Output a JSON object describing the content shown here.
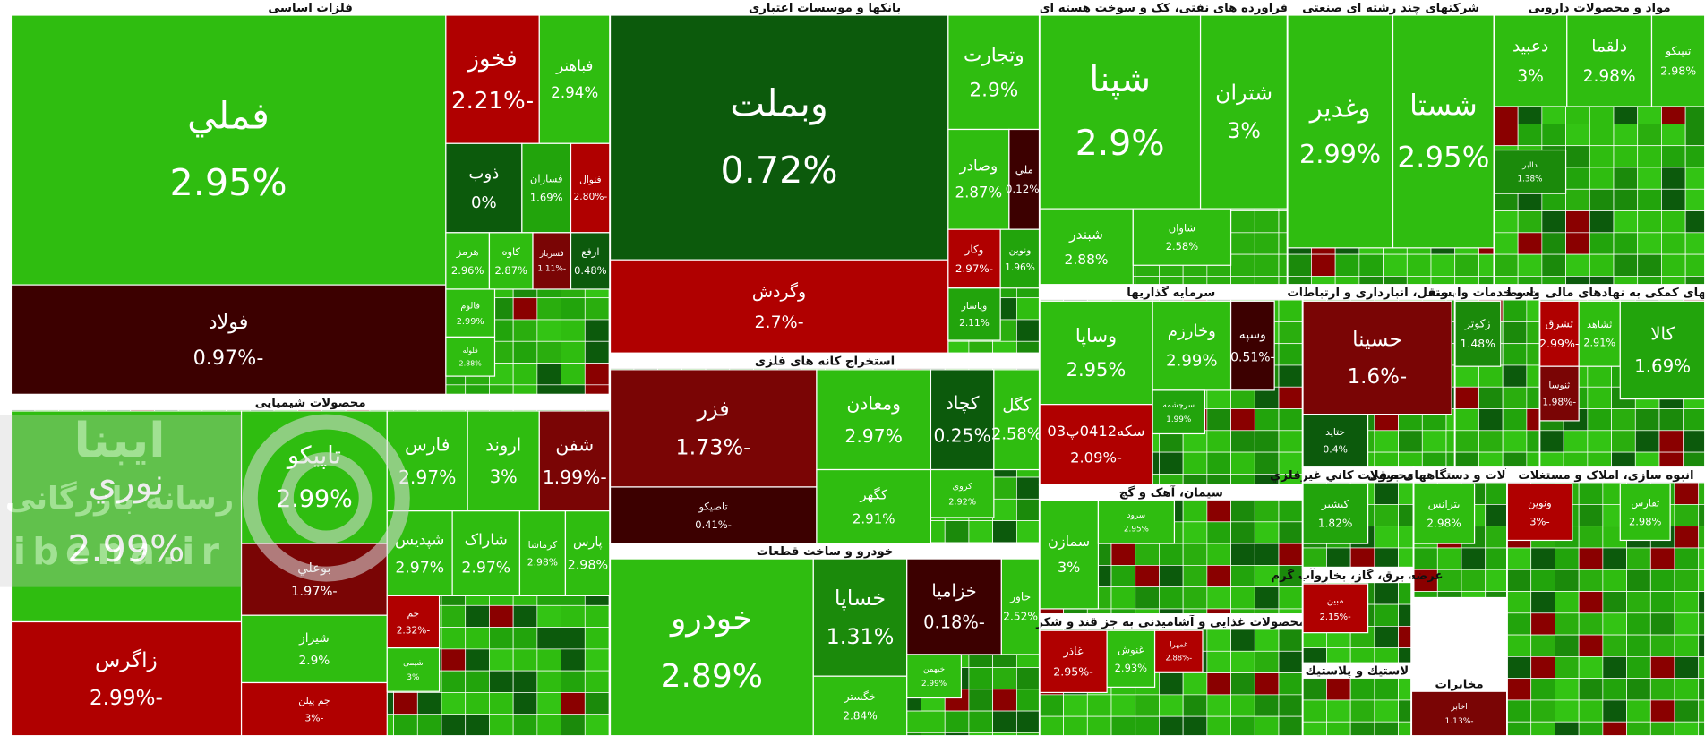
{
  "watermark": {
    "brand": "ایبنا",
    "tagline": "رسانه بازرگانی",
    "url": "ibena.ir"
  },
  "sectors": [
    {
      "title": "فلزات اساسی",
      "tiles": [
        {
          "label": "فملي",
          "change": "2.95%"
        },
        {
          "label": "فولاد",
          "change": "-0.97%"
        },
        {
          "label": "فخوز",
          "change": "-2.21%"
        },
        {
          "label": "فباهنر",
          "change": "2.94%"
        },
        {
          "label": "ذوب",
          "change": "0%"
        },
        {
          "label": "فسازان",
          "change": "1.69%"
        },
        {
          "label": "فنوال",
          "change": "-2.80%"
        },
        {
          "label": "هرمز",
          "change": "2.96%"
        },
        {
          "label": "کاوه",
          "change": "2.87%"
        },
        {
          "label": "فسرباز",
          "change": "-1.11%"
        },
        {
          "label": "ارفع",
          "change": "0.48%"
        },
        {
          "label": "فالوم",
          "change": "2.99%"
        },
        {
          "label": "فلوله",
          "change": "2.88%"
        }
      ]
    },
    {
      "title": "محصولات شیمیایی",
      "tiles": [
        {
          "label": "نوري",
          "change": "2.99%"
        },
        {
          "label": "تاپیکو",
          "change": "2.99%"
        },
        {
          "label": "بوعلي",
          "change": "-1.97%"
        },
        {
          "label": "زاگرس",
          "change": "-2.99%"
        },
        {
          "label": "شیراز",
          "change": "2.9%"
        },
        {
          "label": "جم پیلن",
          "change": "-3%"
        },
        {
          "label": "فارس",
          "change": "2.97%"
        },
        {
          "label": "اروند",
          "change": "3%"
        },
        {
          "label": "شفن",
          "change": "-1.99%"
        },
        {
          "label": "شپدیس",
          "change": "2.97%"
        },
        {
          "label": "شاراک",
          "change": "2.97%"
        },
        {
          "label": "کرماشا",
          "change": "2.98%"
        },
        {
          "label": "پارس",
          "change": "2.98%"
        },
        {
          "label": "جم",
          "change": "-2.32%"
        },
        {
          "label": "شیمی",
          "change": "3%"
        }
      ]
    },
    {
      "title": "بانکها و موسسات اعتباری",
      "tiles": [
        {
          "label": "وبملت",
          "change": "0.72%"
        },
        {
          "label": "وگردش",
          "change": "-2.7%"
        },
        {
          "label": "وتجارت",
          "change": "2.9%"
        },
        {
          "label": "وصادر",
          "change": "2.87%"
        },
        {
          "label": "ملي",
          "change": "-0.12%"
        },
        {
          "label": "وکار",
          "change": "-2.97%"
        },
        {
          "label": "ونوين",
          "change": "1.96%"
        },
        {
          "label": "وپاسار",
          "change": "2.11%"
        }
      ]
    },
    {
      "title": "استخراج کانه های فلزی",
      "tiles": [
        {
          "label": "فزر",
          "change": "-1.73%"
        },
        {
          "label": "تاصیکو",
          "change": "-0.41%"
        },
        {
          "label": "ومعادن",
          "change": "2.97%"
        },
        {
          "label": "کگهر",
          "change": "2.91%"
        },
        {
          "label": "کچاد",
          "change": "0.25%"
        },
        {
          "label": "کگل",
          "change": "2.58%"
        },
        {
          "label": "کروی",
          "change": "2.92%"
        }
      ]
    },
    {
      "title": "خودرو و ساخت قطعات",
      "tiles": [
        {
          "label": "خودرو",
          "change": "2.89%"
        },
        {
          "label": "خساپا",
          "change": "1.31%"
        },
        {
          "label": "خگستر",
          "change": "2.84%"
        },
        {
          "label": "خزامیا",
          "change": "-0.18%"
        },
        {
          "label": "خاور",
          "change": "2.52%"
        },
        {
          "label": "خبهمن",
          "change": "2.99%"
        }
      ]
    },
    {
      "title": "فراورده های نفتی، کک و سوخت هسته ای",
      "tiles": [
        {
          "label": "شپنا",
          "change": "2.9%"
        },
        {
          "label": "شتران",
          "change": "3%"
        },
        {
          "label": "شبندر",
          "change": "2.88%"
        },
        {
          "label": "شاوان",
          "change": "2.58%"
        }
      ]
    },
    {
      "title": "شرکتهای چند رشته ای صنعتی",
      "tiles": [
        {
          "label": "وغدیر",
          "change": "2.99%"
        },
        {
          "label": "شستا",
          "change": "2.95%"
        }
      ]
    },
    {
      "title": "مواد و محصولات دارویی",
      "tiles": [
        {
          "label": "دعبید",
          "change": "3%"
        },
        {
          "label": "دلقما",
          "change": "2.98%"
        },
        {
          "label": "تیپیکو",
          "change": "2.98%"
        },
        {
          "label": "دالبر",
          "change": "1.38%"
        }
      ]
    },
    {
      "title": "سرمایه گذاریها",
      "tiles": [
        {
          "label": "وساپا",
          "change": "2.95%"
        },
        {
          "label": "وخارزم",
          "change": "2.99%"
        },
        {
          "label": "سکه0412پ03",
          "change": "-2.09%"
        },
        {
          "label": "وسپه",
          "change": "-0.51%"
        },
        {
          "label": "سرچشمه",
          "change": "1.99%"
        }
      ]
    },
    {
      "title": "مل ونقل، انبارداری و ارتباطات",
      "tiles": [
        {
          "label": "حسینا",
          "change": "-1.6%"
        },
        {
          "label": "حتاید",
          "change": "0.4%"
        }
      ]
    },
    {
      "title": "زراعت و خدمات وابسته",
      "tiles": [
        {
          "label": "زکوثر",
          "change": "1.48%"
        }
      ]
    },
    {
      "title": "فعالیتهای کمکی به نهادهای مالی واسط",
      "tiles": [
        {
          "label": "ثشرق",
          "change": "-2.99%"
        },
        {
          "label": "ثشاهد",
          "change": "2.91%"
        },
        {
          "label": "کالا",
          "change": "1.69%"
        },
        {
          "label": "ثنوسا",
          "change": "-1.98%"
        }
      ]
    },
    {
      "title": "سیمان، آهک و گچ",
      "tiles": [
        {
          "label": "سمازن",
          "change": "3%"
        },
        {
          "label": "سرود",
          "change": "2.95%"
        }
      ]
    },
    {
      "title": "محصولات غذایی و آشامیدنی به جز قند و شکر",
      "tiles": [
        {
          "label": "غاذر",
          "change": "-2.95%"
        },
        {
          "label": "غنوش",
          "change": "2.93%"
        },
        {
          "label": "غمهرا",
          "change": "-2.88%"
        }
      ]
    },
    {
      "title": "ساير محصولات كاني غيرفلزي",
      "tiles": [
        {
          "label": "کیشیر",
          "change": "1.82%"
        }
      ]
    },
    {
      "title": "ماشين آلات و دستگاههای برقی",
      "tiles": [
        {
          "label": "بترانس",
          "change": "2.98%"
        }
      ]
    },
    {
      "title": "عرضه برق، گاز، بخاروآب گرم",
      "tiles": [
        {
          "label": "مبین",
          "change": "-2.15%"
        }
      ]
    },
    {
      "title": "لاستيك و پلاستيك",
      "tiles": []
    },
    {
      "title": "مخابرات",
      "tiles": [
        {
          "label": "اخابر",
          "change": "-1.13%"
        }
      ]
    },
    {
      "title": "انبوه سازی، املاک و مستغلات",
      "tiles": [
        {
          "label": "ونوین",
          "change": "-3%"
        },
        {
          "label": "ثفارس",
          "change": "2.98%"
        }
      ]
    }
  ]
}
